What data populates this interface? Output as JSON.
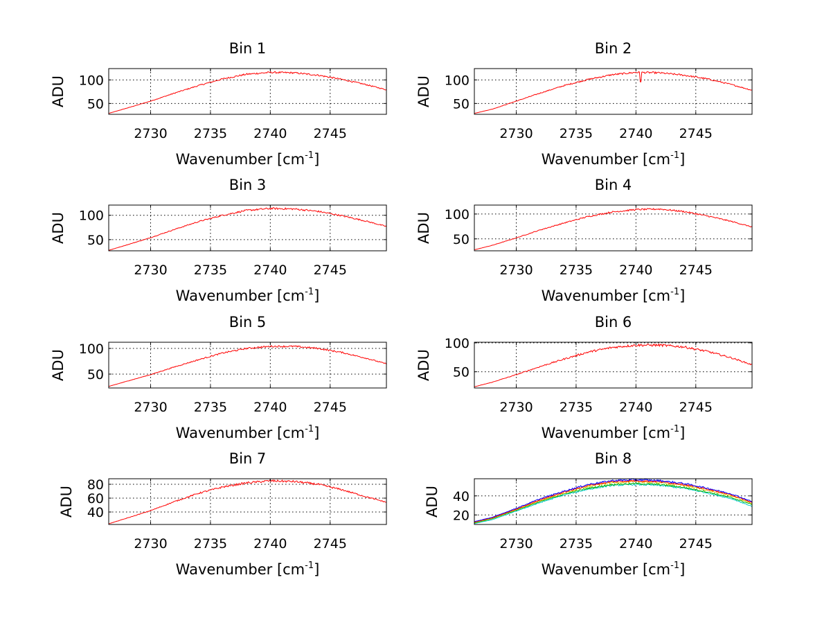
{
  "colors": {
    "axis": "#000000",
    "grid": "#000000",
    "background": "#ffffff",
    "series": [
      "#0000ff",
      "#00c8c8",
      "#00b000",
      "#e0c000",
      "#ff0000"
    ]
  },
  "chart_data": [
    {
      "type": "line",
      "title": "Bin 1",
      "xlabel": "Wavenumber [cm",
      "xlabel_sup": "-1",
      "xlabel_close": "]",
      "ylabel": "ADU",
      "xlim": [
        2726.5,
        2749.7
      ],
      "ylim": [
        27,
        124
      ],
      "xticks": [
        2730,
        2735,
        2740,
        2745
      ],
      "yticks": [
        50,
        100
      ],
      "grid": true,
      "x": [
        2726.5,
        2728,
        2730,
        2732,
        2734,
        2736,
        2738,
        2740,
        2742,
        2744,
        2746,
        2748,
        2749.7
      ],
      "series": [
        {
          "values": [
            29,
            40,
            55,
            72,
            88,
            102,
            112,
            116,
            115,
            110,
            101,
            90,
            79
          ]
        }
      ],
      "noise": 2.0,
      "spikes": []
    },
    {
      "type": "line",
      "title": "Bin 2",
      "xlabel": "Wavenumber [cm",
      "xlabel_sup": "-1",
      "xlabel_close": "]",
      "ylabel": "ADU",
      "xlim": [
        2726.5,
        2749.7
      ],
      "ylim": [
        27,
        124
      ],
      "xticks": [
        2730,
        2735,
        2740,
        2745
      ],
      "yticks": [
        50,
        100
      ],
      "grid": true,
      "x": [
        2726.5,
        2728,
        2730,
        2732,
        2734,
        2736,
        2738,
        2740,
        2742,
        2744,
        2746,
        2748,
        2749.7
      ],
      "series": [
        {
          "values": [
            29,
            38,
            55,
            72,
            88,
            101,
            111,
            116,
            115,
            110,
            102,
            90,
            78
          ]
        }
      ],
      "noise": 2.0,
      "spikes": [
        {
          "x": 2740.4,
          "value": 96
        }
      ]
    },
    {
      "type": "line",
      "title": "Bin 3",
      "xlabel": "Wavenumber [cm",
      "xlabel_sup": "-1",
      "xlabel_close": "]",
      "ylabel": "ADU",
      "xlim": [
        2726.5,
        2749.7
      ],
      "ylim": [
        27,
        121
      ],
      "xticks": [
        2730,
        2735,
        2740,
        2745
      ],
      "yticks": [
        50,
        100
      ],
      "grid": true,
      "x": [
        2726.5,
        2728,
        2730,
        2732,
        2734,
        2736,
        2738,
        2740,
        2742,
        2744,
        2746,
        2748,
        2749.7
      ],
      "series": [
        {
          "values": [
            28,
            39,
            54,
            71,
            87,
            100,
            110,
            114,
            113,
            108,
            99,
            88,
            77
          ]
        }
      ],
      "noise": 2.0,
      "spikes": []
    },
    {
      "type": "line",
      "title": "Bin 4",
      "xlabel": "Wavenumber [cm",
      "xlabel_sup": "-1",
      "xlabel_close": "]",
      "ylabel": "ADU",
      "xlim": [
        2726.5,
        2749.7
      ],
      "ylim": [
        26,
        118
      ],
      "xticks": [
        2730,
        2735,
        2740,
        2745
      ],
      "yticks": [
        50,
        100
      ],
      "grid": true,
      "x": [
        2726.5,
        2728,
        2730,
        2732,
        2734,
        2736,
        2738,
        2740,
        2742,
        2744,
        2746,
        2748,
        2749.7
      ],
      "series": [
        {
          "values": [
            28,
            37,
            52,
            68,
            82,
            95,
            104,
            109,
            110,
            105,
            96,
            85,
            74
          ]
        }
      ],
      "noise": 1.8,
      "spikes": []
    },
    {
      "type": "line",
      "title": "Bin 5",
      "xlabel": "Wavenumber [cm",
      "xlabel_sup": "-1",
      "xlabel_close": "]",
      "ylabel": "ADU",
      "xlim": [
        2726.5,
        2749.7
      ],
      "ylim": [
        23,
        112
      ],
      "xticks": [
        2730,
        2735,
        2740,
        2745
      ],
      "yticks": [
        50,
        100
      ],
      "grid": true,
      "x": [
        2726.5,
        2728,
        2730,
        2732,
        2734,
        2736,
        2738,
        2740,
        2742,
        2744,
        2746,
        2748,
        2749.7
      ],
      "series": [
        {
          "values": [
            26,
            36,
            49,
            64,
            78,
            91,
            100,
            104,
            104,
            100,
            92,
            81,
            70
          ]
        }
      ],
      "noise": 1.8,
      "spikes": []
    },
    {
      "type": "line",
      "title": "Bin 6",
      "xlabel": "Wavenumber [cm",
      "xlabel_sup": "-1",
      "xlabel_close": "]",
      "ylabel": "ADU",
      "xlim": [
        2726.5,
        2749.7
      ],
      "ylim": [
        22,
        101
      ],
      "xticks": [
        2730,
        2735,
        2740,
        2745
      ],
      "yticks": [
        50,
        100
      ],
      "grid": true,
      "x": [
        2726.5,
        2728,
        2730,
        2732,
        2734,
        2736,
        2738,
        2740,
        2742,
        2744,
        2746,
        2748,
        2749.7
      ],
      "series": [
        {
          "values": [
            24,
            32,
            45,
            59,
            72,
            84,
            92,
            96,
            96,
            93,
            85,
            74,
            62
          ]
        }
      ],
      "noise": 2.2,
      "spikes": []
    },
    {
      "type": "line",
      "title": "Bin 7",
      "xlabel": "Wavenumber [cm",
      "xlabel_sup": "-1",
      "xlabel_close": "]",
      "ylabel": "ADU",
      "xlim": [
        2726.5,
        2749.7
      ],
      "ylim": [
        22,
        88
      ],
      "xticks": [
        2730,
        2735,
        2740,
        2745
      ],
      "yticks": [
        40,
        60,
        80
      ],
      "grid": true,
      "x": [
        2726.5,
        2728,
        2730,
        2732,
        2734,
        2736,
        2738,
        2740,
        2742,
        2744,
        2746,
        2748,
        2749.7
      ],
      "series": [
        {
          "values": [
            23,
            31,
            42,
            55,
            67,
            76,
            82,
            85,
            84,
            80,
            72,
            62,
            54
          ]
        }
      ],
      "noise": 1.6,
      "spikes": []
    },
    {
      "type": "line",
      "title": "Bin 8",
      "xlabel": "Wavenumber [cm",
      "xlabel_sup": "-1",
      "xlabel_close": "]",
      "ylabel": "ADU",
      "xlim": [
        2726.5,
        2749.7
      ],
      "ylim": [
        10,
        58
      ],
      "xticks": [
        2730,
        2735,
        2740,
        2745
      ],
      "yticks": [
        20,
        40
      ],
      "grid": true,
      "x": [
        2726.5,
        2728,
        2730,
        2732,
        2734,
        2736,
        2738,
        2740,
        2742,
        2744,
        2746,
        2748,
        2749.7
      ],
      "series": [
        {
          "values": [
            11,
            15,
            24,
            33,
            41,
            47,
            51,
            52,
            51,
            48,
            43,
            37,
            29
          ]
        },
        {
          "values": [
            11.5,
            16,
            25,
            34,
            42,
            48,
            52,
            53,
            52,
            49,
            44,
            38,
            31
          ]
        },
        {
          "values": [
            12,
            16.5,
            25.5,
            35,
            43,
            50,
            54,
            55,
            54,
            51,
            46,
            40,
            32
          ]
        },
        {
          "values": [
            12.5,
            17,
            26,
            36,
            44,
            51,
            55,
            56,
            55,
            52,
            47,
            41,
            33
          ]
        },
        {
          "values": [
            13,
            17.5,
            27,
            37,
            45,
            52,
            56,
            57,
            56,
            53,
            48,
            42,
            34
          ]
        }
      ],
      "noise": 1.0,
      "spikes": []
    }
  ]
}
